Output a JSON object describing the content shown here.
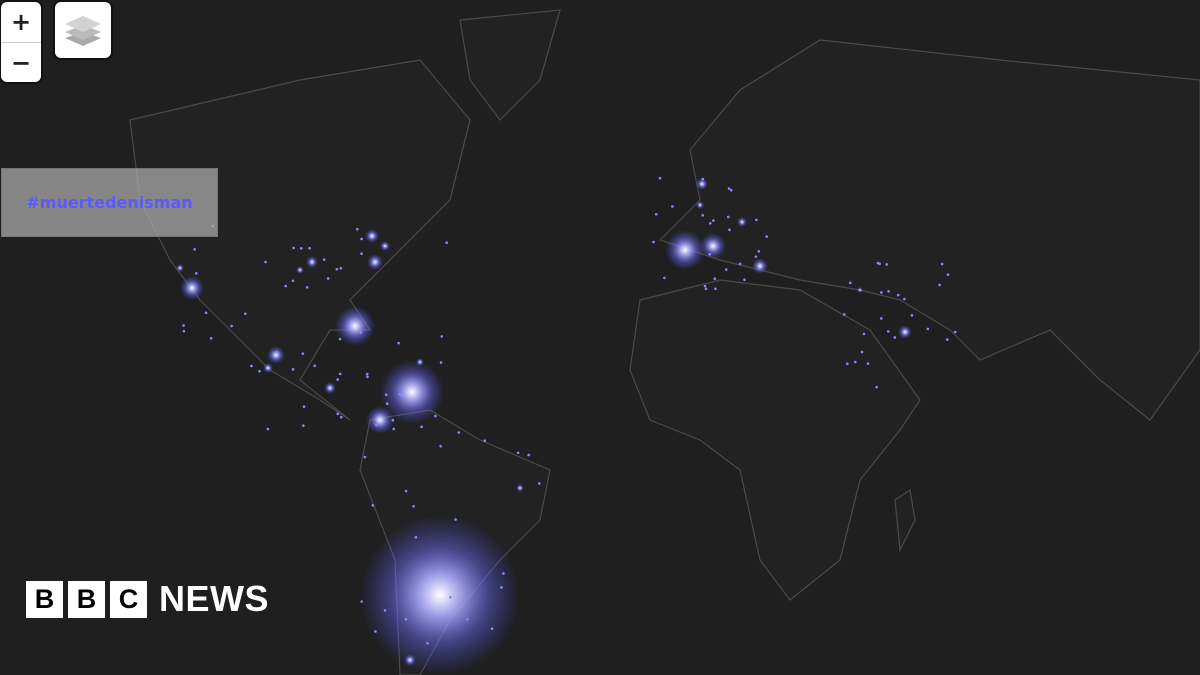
{
  "map": {
    "controls": {
      "zoom_in": "+",
      "zoom_out": "−",
      "layers_icon": "layers-icon"
    },
    "hashtag": "#muertedenisman",
    "glow_color": "#7b7bff",
    "background_color": "#1f1f1f"
  },
  "logo": {
    "letters": [
      "B",
      "B",
      "C"
    ],
    "word": "NEWS"
  }
}
